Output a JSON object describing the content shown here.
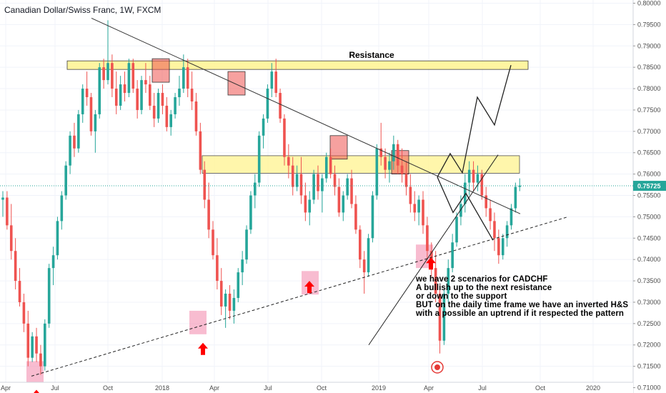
{
  "header": {
    "symbol_title": "Canadian Dollar/Swiss Franc, 1W, FXCM"
  },
  "chart_data": {
    "type": "candlestick",
    "title": "Canadian Dollar/Swiss Franc, 1W, FXCM",
    "ylim": [
      0.70875,
      0.80075
    ],
    "y_ticks": [
      "0.80000",
      "0.79500",
      "0.79000",
      "0.78500",
      "0.78000",
      "0.77500",
      "0.77000",
      "0.76500",
      "0.76000",
      "0.75500",
      "0.75000",
      "0.74500",
      "0.74000",
      "0.73500",
      "0.73000",
      "0.72500",
      "0.72000",
      "0.71500",
      "0.71000"
    ],
    "x_ticks": [
      "Apr",
      "Jul",
      "Oct",
      "2018",
      "Apr",
      "Jul",
      "Oct",
      "2019",
      "Apr",
      "Jul",
      "Oct",
      "2020"
    ],
    "last_price": "0.75725",
    "candles_ohlc": [
      [
        0.754,
        0.756,
        0.75,
        0.7545
      ],
      [
        0.7545,
        0.756,
        0.747,
        0.748
      ],
      [
        0.748,
        0.753,
        0.74,
        0.742
      ],
      [
        0.742,
        0.745,
        0.733,
        0.735
      ],
      [
        0.735,
        0.738,
        0.729,
        0.73
      ],
      [
        0.73,
        0.732,
        0.723,
        0.725
      ],
      [
        0.725,
        0.728,
        0.715,
        0.717
      ],
      [
        0.717,
        0.723,
        0.716,
        0.722
      ],
      [
        0.722,
        0.724,
        0.716,
        0.718
      ],
      [
        0.718,
        0.72,
        0.713,
        0.715
      ],
      [
        0.715,
        0.726,
        0.714,
        0.725
      ],
      [
        0.725,
        0.739,
        0.724,
        0.738
      ],
      [
        0.738,
        0.743,
        0.734,
        0.741
      ],
      [
        0.741,
        0.75,
        0.74,
        0.749
      ],
      [
        0.749,
        0.756,
        0.747,
        0.755
      ],
      [
        0.755,
        0.763,
        0.754,
        0.762
      ],
      [
        0.762,
        0.77,
        0.76,
        0.769
      ],
      [
        0.769,
        0.772,
        0.764,
        0.766
      ],
      [
        0.766,
        0.775,
        0.765,
        0.774
      ],
      [
        0.774,
        0.781,
        0.772,
        0.78
      ],
      [
        0.78,
        0.784,
        0.776,
        0.778
      ],
      [
        0.778,
        0.779,
        0.769,
        0.77
      ],
      [
        0.77,
        0.775,
        0.765,
        0.774
      ],
      [
        0.774,
        0.786,
        0.773,
        0.785
      ],
      [
        0.785,
        0.787,
        0.78,
        0.782
      ],
      [
        0.782,
        0.796,
        0.781,
        0.786
      ],
      [
        0.786,
        0.788,
        0.778,
        0.78
      ],
      [
        0.78,
        0.784,
        0.774,
        0.776
      ],
      [
        0.776,
        0.783,
        0.775,
        0.781
      ],
      [
        0.781,
        0.784,
        0.777,
        0.779
      ],
      [
        0.779,
        0.787,
        0.778,
        0.786
      ],
      [
        0.786,
        0.787,
        0.779,
        0.78
      ],
      [
        0.78,
        0.782,
        0.773,
        0.775
      ],
      [
        0.775,
        0.783,
        0.774,
        0.782
      ],
      [
        0.782,
        0.786,
        0.779,
        0.781
      ],
      [
        0.781,
        0.783,
        0.775,
        0.776
      ],
      [
        0.776,
        0.779,
        0.771,
        0.773
      ],
      [
        0.773,
        0.78,
        0.772,
        0.779
      ],
      [
        0.779,
        0.781,
        0.774,
        0.776
      ],
      [
        0.776,
        0.778,
        0.77,
        0.771
      ],
      [
        0.771,
        0.775,
        0.769,
        0.774
      ],
      [
        0.774,
        0.779,
        0.773,
        0.778
      ],
      [
        0.778,
        0.783,
        0.776,
        0.78
      ],
      [
        0.78,
        0.788,
        0.779,
        0.785
      ],
      [
        0.785,
        0.787,
        0.778,
        0.78
      ],
      [
        0.78,
        0.784,
        0.775,
        0.777
      ],
      [
        0.777,
        0.779,
        0.769,
        0.77
      ],
      [
        0.77,
        0.772,
        0.76,
        0.761
      ],
      [
        0.761,
        0.763,
        0.752,
        0.754
      ],
      [
        0.754,
        0.758,
        0.745,
        0.747
      ],
      [
        0.747,
        0.749,
        0.74,
        0.741
      ],
      [
        0.741,
        0.745,
        0.733,
        0.735
      ],
      [
        0.735,
        0.738,
        0.727,
        0.729
      ],
      [
        0.729,
        0.733,
        0.724,
        0.732
      ],
      [
        0.732,
        0.734,
        0.726,
        0.728
      ],
      [
        0.728,
        0.733,
        0.725,
        0.731
      ],
      [
        0.731,
        0.738,
        0.73,
        0.737
      ],
      [
        0.737,
        0.742,
        0.734,
        0.74
      ],
      [
        0.74,
        0.748,
        0.739,
        0.747
      ],
      [
        0.747,
        0.756,
        0.746,
        0.755
      ],
      [
        0.755,
        0.76,
        0.752,
        0.758
      ],
      [
        0.758,
        0.77,
        0.757,
        0.769
      ],
      [
        0.769,
        0.774,
        0.766,
        0.773
      ],
      [
        0.773,
        0.781,
        0.772,
        0.78
      ],
      [
        0.78,
        0.786,
        0.778,
        0.784
      ],
      [
        0.784,
        0.787,
        0.778,
        0.779
      ],
      [
        0.779,
        0.78,
        0.772,
        0.773
      ],
      [
        0.773,
        0.774,
        0.762,
        0.764
      ],
      [
        0.764,
        0.767,
        0.759,
        0.762
      ],
      [
        0.762,
        0.764,
        0.755,
        0.757
      ],
      [
        0.757,
        0.762,
        0.756,
        0.76
      ],
      [
        0.76,
        0.764,
        0.753,
        0.755
      ],
      [
        0.755,
        0.758,
        0.749,
        0.751
      ],
      [
        0.751,
        0.756,
        0.748,
        0.754
      ],
      [
        0.754,
        0.761,
        0.753,
        0.76
      ],
      [
        0.76,
        0.762,
        0.754,
        0.756
      ],
      [
        0.756,
        0.76,
        0.751,
        0.759
      ],
      [
        0.759,
        0.765,
        0.758,
        0.764
      ],
      [
        0.764,
        0.766,
        0.759,
        0.76
      ],
      [
        0.76,
        0.762,
        0.755,
        0.757
      ],
      [
        0.757,
        0.759,
        0.75,
        0.751
      ],
      [
        0.751,
        0.756,
        0.749,
        0.755
      ],
      [
        0.755,
        0.76,
        0.754,
        0.759
      ],
      [
        0.759,
        0.761,
        0.752,
        0.753
      ],
      [
        0.753,
        0.755,
        0.746,
        0.747
      ],
      [
        0.747,
        0.748,
        0.738,
        0.74
      ],
      [
        0.74,
        0.742,
        0.732,
        0.737
      ],
      [
        0.737,
        0.746,
        0.736,
        0.745
      ],
      [
        0.745,
        0.756,
        0.744,
        0.755
      ],
      [
        0.755,
        0.767,
        0.754,
        0.766
      ],
      [
        0.766,
        0.772,
        0.762,
        0.764
      ],
      [
        0.764,
        0.766,
        0.759,
        0.761
      ],
      [
        0.761,
        0.765,
        0.758,
        0.763
      ],
      [
        0.763,
        0.769,
        0.761,
        0.767
      ],
      [
        0.767,
        0.768,
        0.76,
        0.762
      ],
      [
        0.762,
        0.766,
        0.758,
        0.76
      ],
      [
        0.76,
        0.763,
        0.755,
        0.757
      ],
      [
        0.757,
        0.76,
        0.751,
        0.753
      ],
      [
        0.753,
        0.756,
        0.749,
        0.751
      ],
      [
        0.751,
        0.755,
        0.748,
        0.754
      ],
      [
        0.754,
        0.756,
        0.746,
        0.748
      ],
      [
        0.748,
        0.75,
        0.74,
        0.742
      ],
      [
        0.742,
        0.744,
        0.736,
        0.738
      ],
      [
        0.738,
        0.742,
        0.73,
        0.732
      ],
      [
        0.732,
        0.734,
        0.718,
        0.721
      ],
      [
        0.721,
        0.733,
        0.72,
        0.732
      ],
      [
        0.732,
        0.74,
        0.73,
        0.738
      ],
      [
        0.738,
        0.746,
        0.737,
        0.744
      ],
      [
        0.744,
        0.751,
        0.743,
        0.75
      ],
      [
        0.75,
        0.755,
        0.748,
        0.753
      ],
      [
        0.753,
        0.76,
        0.751,
        0.758
      ],
      [
        0.758,
        0.763,
        0.755,
        0.761
      ],
      [
        0.761,
        0.763,
        0.756,
        0.758
      ],
      [
        0.758,
        0.762,
        0.756,
        0.76
      ],
      [
        0.76,
        0.761,
        0.754,
        0.755
      ],
      [
        0.755,
        0.757,
        0.75,
        0.752
      ],
      [
        0.752,
        0.754,
        0.747,
        0.749
      ],
      [
        0.749,
        0.751,
        0.742,
        0.745
      ],
      [
        0.745,
        0.747,
        0.739,
        0.741
      ],
      [
        0.741,
        0.746,
        0.74,
        0.745
      ],
      [
        0.745,
        0.749,
        0.743,
        0.748
      ],
      [
        0.748,
        0.753,
        0.747,
        0.752
      ],
      [
        0.752,
        0.758,
        0.751,
        0.757
      ],
      [
        0.757,
        0.759,
        0.756,
        0.7573
      ]
    ],
    "annotations": {
      "resistance_label": "Resistance",
      "note_lines": [
        "we have 2 scenarios for CADCHF",
        "A bullish up to the next resistance",
        "or down to the support",
        "BUT on the daily time frame we have an inverted H&S",
        "with a possible an uptrend if it respected the pattern"
      ]
    },
    "colors": {
      "up": "#26a69a",
      "down": "#ef5350",
      "price_tag": "#26a69a",
      "zone_fill": "#fff176",
      "arrow": "#ff0000"
    }
  }
}
